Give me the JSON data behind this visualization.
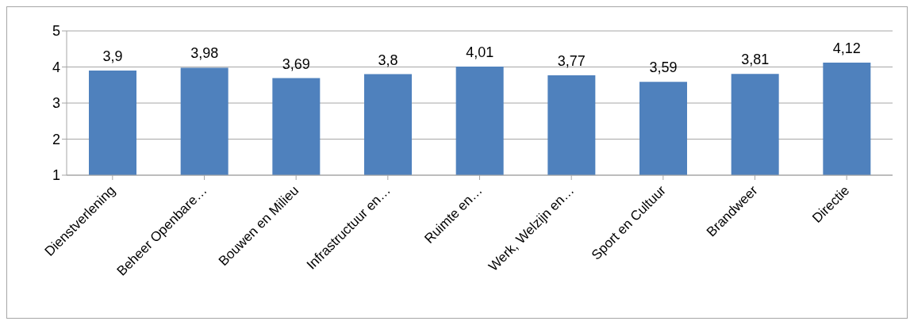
{
  "chart_data": {
    "type": "bar",
    "categories": [
      "Dienstverlening",
      "Beheer Openbare…",
      "Bouwen en Milieu",
      "Infrastructuur en…",
      "Ruimte en…",
      "Werk, Welzijn en…",
      "Sport en Cultuur",
      "Brandweer",
      "Directie"
    ],
    "values": [
      3.9,
      3.98,
      3.69,
      3.8,
      4.01,
      3.77,
      3.59,
      3.81,
      4.12
    ],
    "value_labels": [
      "3,9",
      "3,98",
      "3,69",
      "3,8",
      "4,01",
      "3,77",
      "3,59",
      "3,81",
      "4,12"
    ],
    "color": "#4f81bd",
    "ylim": [
      1,
      5
    ],
    "yticks": [
      1,
      2,
      3,
      4,
      5
    ],
    "grid": "y",
    "legend": false
  }
}
